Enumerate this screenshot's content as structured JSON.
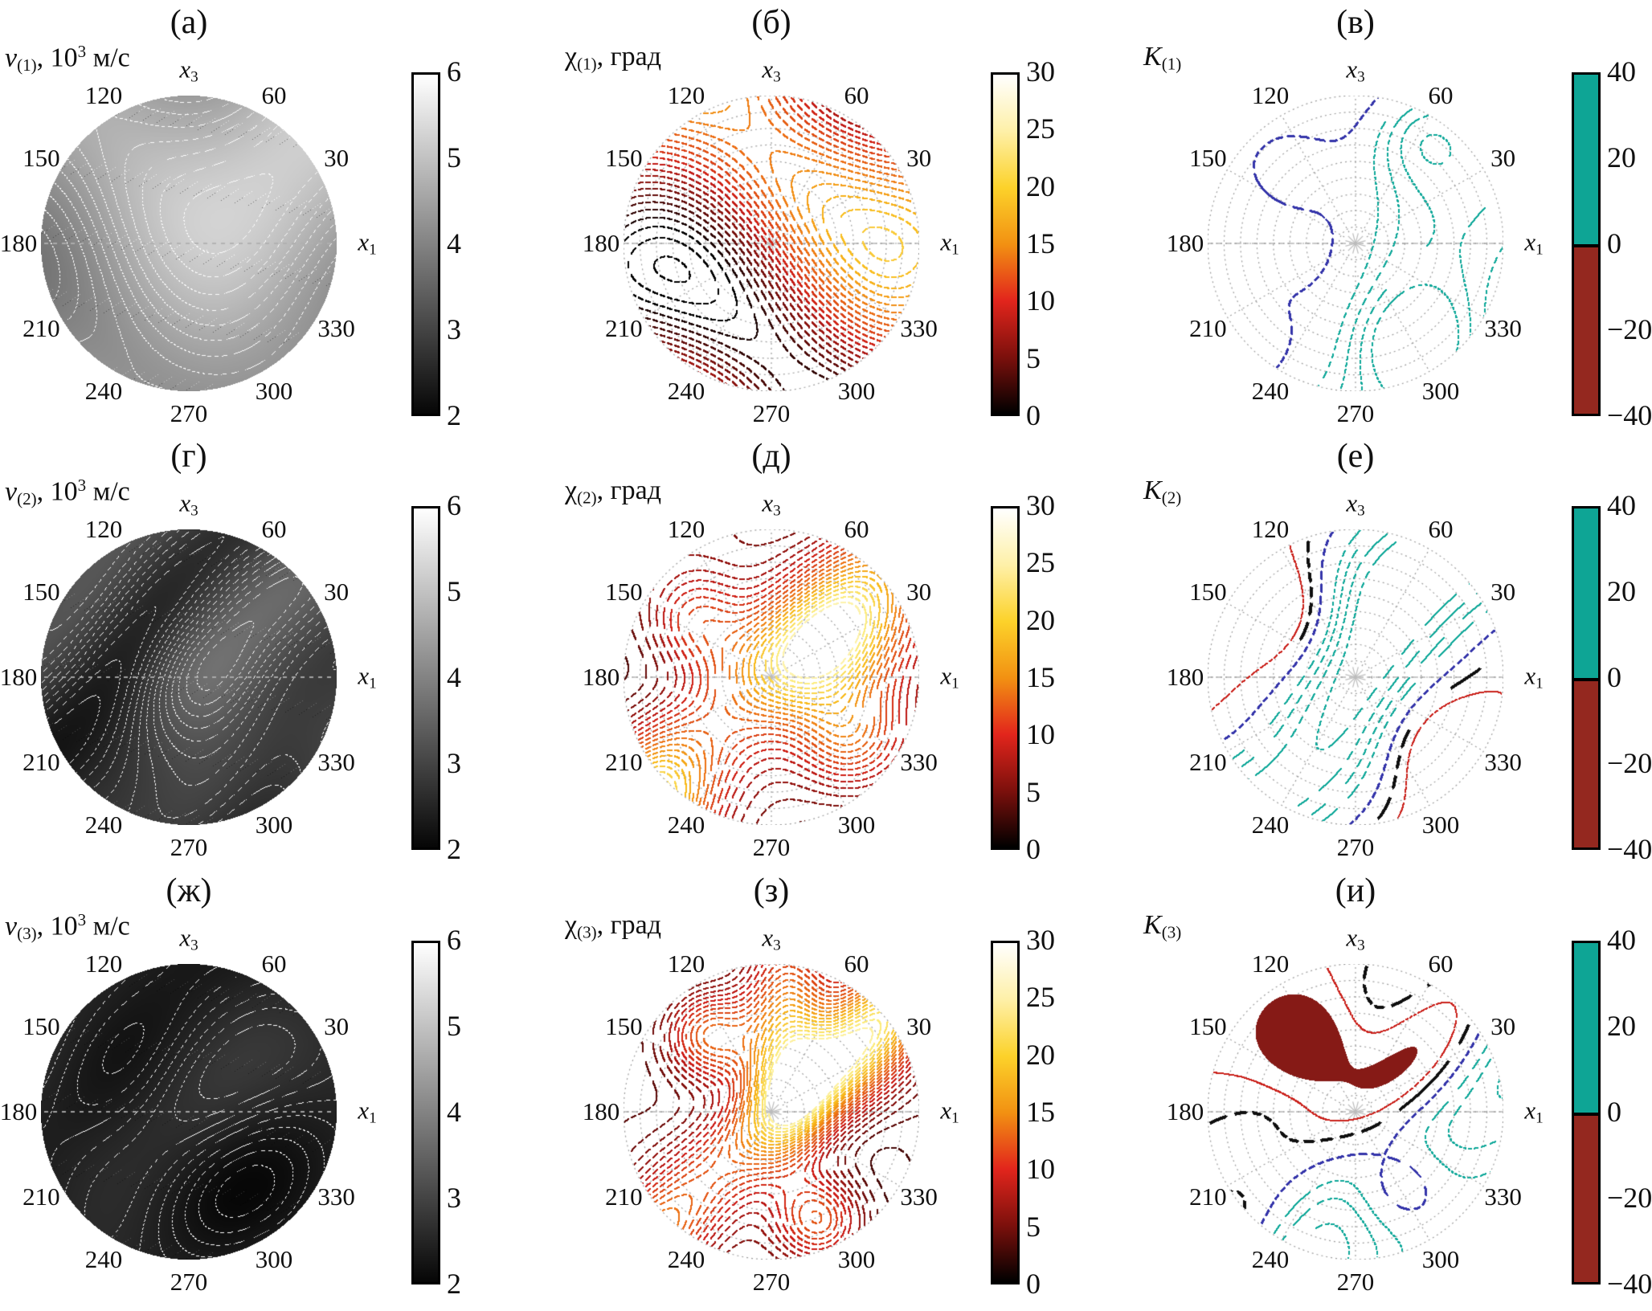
{
  "figure": {
    "background": "#ffffff",
    "angle_ticks": [
      {
        "deg": 0,
        "var": "x",
        "sub": "1"
      },
      {
        "deg": 30,
        "text": "30"
      },
      {
        "deg": 60,
        "text": "60"
      },
      {
        "deg": 90,
        "var": "x",
        "sub": "3"
      },
      {
        "deg": 120,
        "text": "120"
      },
      {
        "deg": 150,
        "text": "150"
      },
      {
        "deg": 180,
        "text": "180"
      },
      {
        "deg": 210,
        "text": "210"
      },
      {
        "deg": 240,
        "text": "240"
      },
      {
        "deg": 270,
        "text": "270"
      },
      {
        "deg": 300,
        "text": "300"
      },
      {
        "deg": 330,
        "text": "330"
      }
    ],
    "colorbars": [
      {
        "id": "velocity-bar",
        "ticks": [
          "6",
          "5",
          "4",
          "3",
          "2"
        ],
        "gradient": [
          "#ffffff",
          "#060606"
        ],
        "border": "#000000"
      },
      {
        "id": "chi-bar",
        "ticks": [
          "30",
          "25",
          "20",
          "15",
          "10",
          "5",
          "0"
        ],
        "gradient": [
          "#ffffff",
          "#fef0a8",
          "#fcd22a",
          "#f29112",
          "#e2251c",
          "#7c100c",
          "#000000"
        ],
        "border": "#000000"
      },
      {
        "id": "k-bar",
        "ticks": [
          "40",
          "20",
          "0",
          "−20",
          "−40"
        ],
        "positive": "#0ea595",
        "negative": "#94281f",
        "border": "#000000"
      }
    ],
    "grid_color": "#9d9d9d",
    "contour_colors": {
      "teal": "#10a89a",
      "blue": "#3434aa",
      "black": "#0f0f0f",
      "red": "#ca221c",
      "dark_red": "#861a16",
      "white": "#fcfcfc"
    }
  },
  "chart_data": [
    {
      "plot": "polar_contour",
      "label": "(а)",
      "title": {
        "var": "v",
        "italic": true,
        "sub": "(1)",
        "rest": ", 10",
        "sup": "3",
        "tail": " м/с"
      },
      "kind": "v",
      "range": [
        2,
        6
      ],
      "step": 0.12,
      "terms": [
        {
          "t": "c",
          "a": 4.55
        },
        {
          "t": "s",
          "a": 0.45,
          "kx": 0,
          "ky": 2.1,
          "ph": 0,
          "m": [
            0.9,
            2.4,
            0,
            1.2
          ]
        },
        {
          "t": "s",
          "a": 0.28,
          "kx": 1.4,
          "ky": -0.9,
          "ph": 0.6
        },
        {
          "t": "s",
          "a": 0.09,
          "kx": 2.6,
          "ky": -2.2,
          "ph": 1.57
        },
        {
          "t": "s",
          "a": 0.09,
          "kx": 2.6,
          "ky": 2.2,
          "ph": 1.57
        }
      ]
    },
    {
      "plot": "polar_contour",
      "label": "(б)",
      "title": {
        "var": "χ",
        "italic": false,
        "sub": "(1)",
        "rest": ", град"
      },
      "kind": "chi",
      "range": [
        0,
        30
      ],
      "step": 1.1,
      "terms": [
        {
          "t": "c",
          "a": 11
        },
        {
          "t": "s",
          "a": 6.5,
          "kx": 0,
          "ky": 2.3,
          "ph": 0,
          "m": [
            1.1,
            2.0,
            0,
            0
          ]
        },
        {
          "t": "s",
          "a": 2.25,
          "kx": 1.8,
          "ky": 2.4,
          "ph": 0.5
        },
        {
          "t": "s",
          "a": 2.25,
          "kx": 1.8,
          "ky": -2.4,
          "ph": -0.5
        },
        {
          "t": "s",
          "a": 3,
          "kx": 2.48,
          "ky": 1.86,
          "ph": 0
        },
        {
          "t": "g",
          "a": -4,
          "x0": 0,
          "y0": 0.95,
          "sx": 1.4,
          "sy": 2.0
        }
      ]
    },
    {
      "plot": "polar_contour",
      "label": "(в)",
      "title": {
        "var": "K",
        "italic": true,
        "sub": "(1)"
      },
      "kind": "K",
      "range": [
        -40,
        40
      ],
      "terms": [
        {
          "t": "d",
          "a": 16,
          "k": 2.0,
          "ph": 0.2,
          "m": [
            0.7,
            1.8,
            0
          ]
        },
        {
          "t": "g",
          "a": 20,
          "x0": -0.5,
          "y0": 0.52,
          "sx": 2.55,
          "sy": 2.55
        },
        {
          "t": "g",
          "a": 12,
          "x0": 0.42,
          "y0": 0.75,
          "sx": 2.8,
          "sy": 2.8
        },
        {
          "t": "g",
          "a": 14,
          "x0": 0.38,
          "y0": -0.66,
          "sx": 2.8,
          "sy": 2.8
        },
        {
          "t": "g",
          "a": 10,
          "x0": -0.62,
          "y0": -0.3,
          "sx": 2.8,
          "sy": 2.8
        }
      ],
      "levels": [
        {
          "v": 0,
          "st": "blue"
        },
        {
          "v": 8,
          "st": "teal"
        },
        {
          "v": 12,
          "st": "teal"
        },
        {
          "v": 16,
          "st": "teal"
        },
        {
          "v": 20,
          "st": "teal"
        }
      ]
    },
    {
      "plot": "polar_contour",
      "label": "(г)",
      "title": {
        "var": "v",
        "italic": true,
        "sub": "(2)",
        "rest": ", 10",
        "sup": "3",
        "tail": " м/с"
      },
      "kind": "v",
      "range": [
        2,
        6
      ],
      "step": 0.1,
      "terms": [
        {
          "t": "c",
          "a": 2.92
        },
        {
          "t": "d",
          "a": 0.36,
          "k": 5.0,
          "ph": 0.3,
          "m": [
            0.8,
            2.2,
            0.2
          ]
        },
        {
          "t": "s",
          "a": 0.2,
          "kx": 1.1,
          "ky": 1.1,
          "ph": 0.5
        },
        {
          "t": "g",
          "a": 0.33,
          "x0": 0,
          "y0": 0,
          "sx": 2.4,
          "sy": 2.4
        },
        {
          "t": "d",
          "a": 0.12,
          "k": 7.5,
          "ph": 1.9
        },
        {
          "t": "s",
          "a": 0.1,
          "kx": 2.6,
          "ky": 0,
          "ph": 0
        }
      ]
    },
    {
      "plot": "polar_contour",
      "label": "(д)",
      "title": {
        "var": "χ",
        "italic": false,
        "sub": "(2)",
        "rest": ", град"
      },
      "kind": "chi",
      "range": [
        0,
        30
      ],
      "step": 1.2,
      "terms": [
        {
          "t": "c",
          "a": 5.5
        },
        {
          "t": "s",
          "a": 1.6,
          "kx": 2.3,
          "ky": 2.0,
          "ph": 0.4
        },
        {
          "t": "s",
          "a": 1.6,
          "kx": 2.3,
          "ky": -2.0,
          "ph": 0.4
        },
        {
          "t": "b",
          "a": 24,
          "sd": 2.6,
          "d0": 0,
          "wa": 0.06,
          "wk": 2.8,
          "wph": 0,
          "c0": 0.72,
          "c1": 0.28,
          "ck": 3.6,
          "cph": 0
        },
        {
          "t": "g",
          "a": 9,
          "x0": -0.52,
          "y0": 0.38,
          "sx": 3,
          "sy": 3
        },
        {
          "t": "g",
          "a": 9,
          "x0": 0.52,
          "y0": -0.38,
          "sx": 3,
          "sy": 3
        }
      ]
    },
    {
      "plot": "polar_contour",
      "label": "(е)",
      "title": {
        "var": "K",
        "italic": true,
        "sub": "(2)"
      },
      "kind": "K",
      "range": [
        -40,
        40
      ],
      "terms": [
        {
          "t": "d",
          "a": 28,
          "k": 3.2,
          "ph": 1.6,
          "m": [
            0.6,
            2.2,
            0
          ]
        },
        {
          "t": "s",
          "a": 6,
          "kx": 1.35,
          "ky": 1.35,
          "ph": 0.3
        },
        {
          "t": "g",
          "a": -26,
          "x0": -0.5,
          "y0": 0.42,
          "sx": 2.8,
          "sy": 2.8
        },
        {
          "t": "g",
          "a": -22,
          "x0": 0.55,
          "y0": -0.45,
          "sx": 2.8,
          "sy": 2.8
        }
      ],
      "levels": [
        {
          "v": -24,
          "st": "red"
        },
        {
          "v": -16,
          "st": "black"
        },
        {
          "v": -6,
          "st": "blue"
        },
        {
          "v": 6,
          "st": "teal"
        },
        {
          "v": 12,
          "st": "teal"
        },
        {
          "v": 18,
          "st": "teal"
        },
        {
          "v": 24,
          "st": "teal"
        }
      ]
    },
    {
      "plot": "polar_contour",
      "label": "(ж)",
      "title": {
        "var": "v",
        "italic": true,
        "sub": "(3)",
        "rest": ", 10",
        "sup": "3",
        "tail": " м/с"
      },
      "kind": "v",
      "range": [
        2,
        6
      ],
      "step": 0.08,
      "terms": [
        {
          "t": "c",
          "a": 2.52
        },
        {
          "t": "s",
          "a": 0.1,
          "kx": 2.8,
          "ky": -2.8,
          "ph": 1.57
        },
        {
          "t": "s",
          "a": -0.1,
          "kx": 2.8,
          "ky": 2.8,
          "ph": 1.57
        },
        {
          "t": "q",
          "a": 0.17,
          "ss": 1.5,
          "kd": 5.5,
          "ph": 0
        },
        {
          "t": "s",
          "a": 0.12,
          "kx": 0,
          "ky": 3.4,
          "ph": 0.5,
          "m": [
            0.5,
            3.0,
            0,
            0
          ]
        }
      ]
    },
    {
      "plot": "polar_contour",
      "label": "(з)",
      "title": {
        "var": "χ",
        "italic": false,
        "sub": "(3)",
        "rest": ", град"
      },
      "kind": "chi",
      "range": [
        0,
        30
      ],
      "step": 1.05,
      "terms": [
        {
          "t": "c",
          "a": 4
        },
        {
          "t": "s",
          "a": 1.2,
          "kx": 2.8,
          "ky": -2.6,
          "ph": 1.57
        },
        {
          "t": "s",
          "a": -1.2,
          "kx": 2.8,
          "ky": 2.6,
          "ph": 1.57
        },
        {
          "t": "b",
          "a": 22,
          "sd": 3.4,
          "d0": 0.05,
          "wa": 0.04,
          "wk": 2.2,
          "wph": 0,
          "c0": 0.7,
          "c1": 0.3,
          "ck": 2.5,
          "cph": 0
        },
        {
          "t": "g",
          "a": 16,
          "x0": 0.1,
          "y0": 0.45,
          "sx": 3.6,
          "sy": 1.4
        },
        {
          "t": "g",
          "a": 14,
          "x0": -0.42,
          "y0": 0.52,
          "sx": 3.2,
          "sy": 3.2
        },
        {
          "t": "g",
          "a": 12,
          "x0": 0.33,
          "y0": -0.72,
          "sx": 3.3,
          "sy": 3.3
        }
      ]
    },
    {
      "plot": "polar_contour",
      "label": "(и)",
      "title": {
        "var": "K",
        "italic": true,
        "sub": "(3)"
      },
      "kind": "K",
      "range": [
        -40,
        40
      ],
      "terms": [
        {
          "t": "b",
          "a": -34,
          "sd": 3.0,
          "d0": -0.02,
          "wa": 0.05,
          "wk": 2.5,
          "wph": 0,
          "c0": 0.78,
          "c1": 0.3,
          "ck": 2.8,
          "cph": 0
        },
        {
          "t": "d",
          "a": 15,
          "k": 2.2,
          "ph": 0.5
        },
        {
          "t": "s",
          "a": 3,
          "kx": 2,
          "ky": -2,
          "ph": 1.57
        },
        {
          "t": "s",
          "a": -3,
          "kx": 2,
          "ky": 2,
          "ph": 1.57
        },
        {
          "t": "g",
          "a": -22,
          "x0": -0.33,
          "y0": 0.47,
          "sx": 3.2,
          "sy": 3.2
        },
        {
          "t": "g",
          "a": -18,
          "x0": 0.3,
          "y0": -0.5,
          "sx": 3.3,
          "sy": 3.3
        }
      ],
      "fill": {
        "below": -26,
        "st": "dark_red"
      },
      "levels": [
        {
          "v": -18,
          "st": "red"
        },
        {
          "v": -12,
          "st": "black"
        },
        {
          "v": -4,
          "st": "blue"
        },
        {
          "v": 4,
          "st": "teal"
        },
        {
          "v": 9,
          "st": "teal"
        },
        {
          "v": 14,
          "st": "teal"
        },
        {
          "v": 19,
          "st": "teal"
        }
      ]
    }
  ]
}
